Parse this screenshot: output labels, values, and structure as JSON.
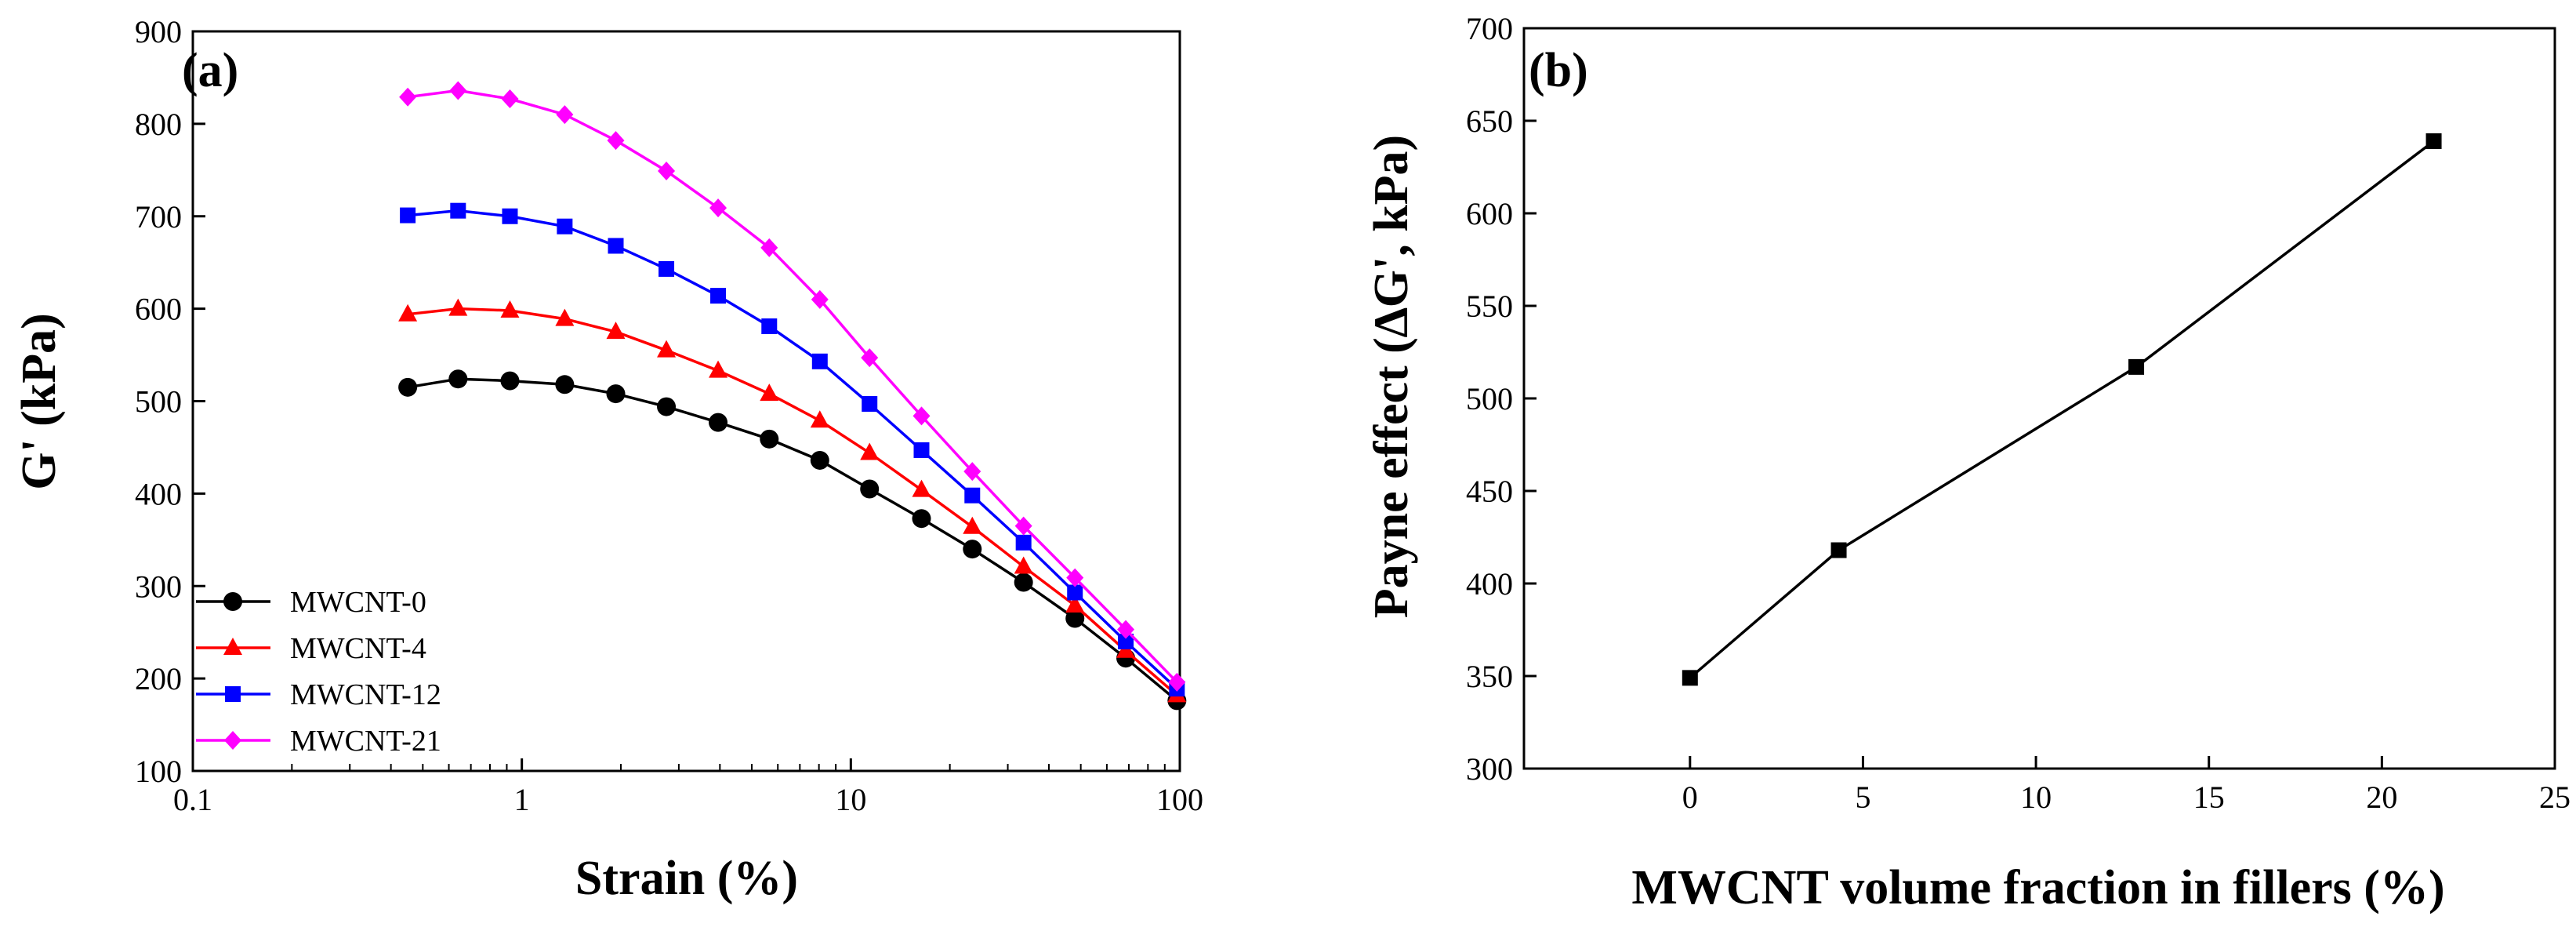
{
  "chart_data": [
    {
      "type": "line",
      "panel_label": "(a)",
      "title": "",
      "xlabel": "Strain (%)",
      "ylabel": "G' (kPa)",
      "xscale": "log",
      "xlim": [
        0.1,
        100
      ],
      "ylim": [
        100,
        900
      ],
      "xticks": [
        "0.1",
        "1",
        "10",
        "100"
      ],
      "yticks": [
        "100",
        "200",
        "300",
        "400",
        "500",
        "600",
        "700",
        "800",
        "900"
      ],
      "grid": false,
      "legend_position": "bottom-left",
      "x": [
        0.45,
        0.64,
        0.92,
        1.35,
        1.93,
        2.75,
        3.95,
        5.65,
        8.05,
        11.4,
        16.4,
        23.4,
        33.5,
        48.0,
        68.5,
        98.0
      ],
      "series": [
        {
          "name": "MWCNT-0",
          "color": "#000000",
          "marker": "circle",
          "values": [
            515,
            524,
            522,
            518,
            508,
            494,
            477,
            459,
            436,
            405,
            373,
            340,
            304,
            265,
            222,
            176
          ]
        },
        {
          "name": "MWCNT-4",
          "color": "#ff0000",
          "marker": "triangle",
          "values": [
            594,
            600,
            598,
            589,
            575,
            555,
            533,
            508,
            479,
            444,
            404,
            364,
            321,
            279,
            230,
            182
          ]
        },
        {
          "name": "MWCNT-12",
          "color": "#0000ff",
          "marker": "square",
          "values": [
            701,
            706,
            700,
            689,
            668,
            643,
            614,
            581,
            543,
            497,
            447,
            398,
            347,
            293,
            240,
            189
          ]
        },
        {
          "name": "MWCNT-21",
          "color": "#ff00ff",
          "marker": "diamond",
          "values": [
            829,
            836,
            827,
            810,
            782,
            749,
            709,
            666,
            610,
            547,
            484,
            424,
            365,
            309,
            253,
            196
          ]
        }
      ]
    },
    {
      "type": "line",
      "panel_label": "(b)",
      "title": "",
      "xlabel": "MWCNT volume fraction in fillers (%)",
      "ylabel": "Payne effect (∆G', kPa)",
      "xscale": "linear",
      "xlim": [
        -4.8,
        25
      ],
      "ylim": [
        300,
        700
      ],
      "xticks": [
        "0",
        "5",
        "10",
        "15",
        "20",
        "25"
      ],
      "yticks": [
        "300",
        "350",
        "400",
        "450",
        "500",
        "550",
        "600",
        "650",
        "700"
      ],
      "grid": false,
      "series": [
        {
          "name": "",
          "color": "#000000",
          "marker": "square",
          "x": [
            0,
            4.3,
            12.9,
            21.5
          ],
          "values": [
            349,
            418,
            517,
            639
          ]
        }
      ]
    }
  ]
}
